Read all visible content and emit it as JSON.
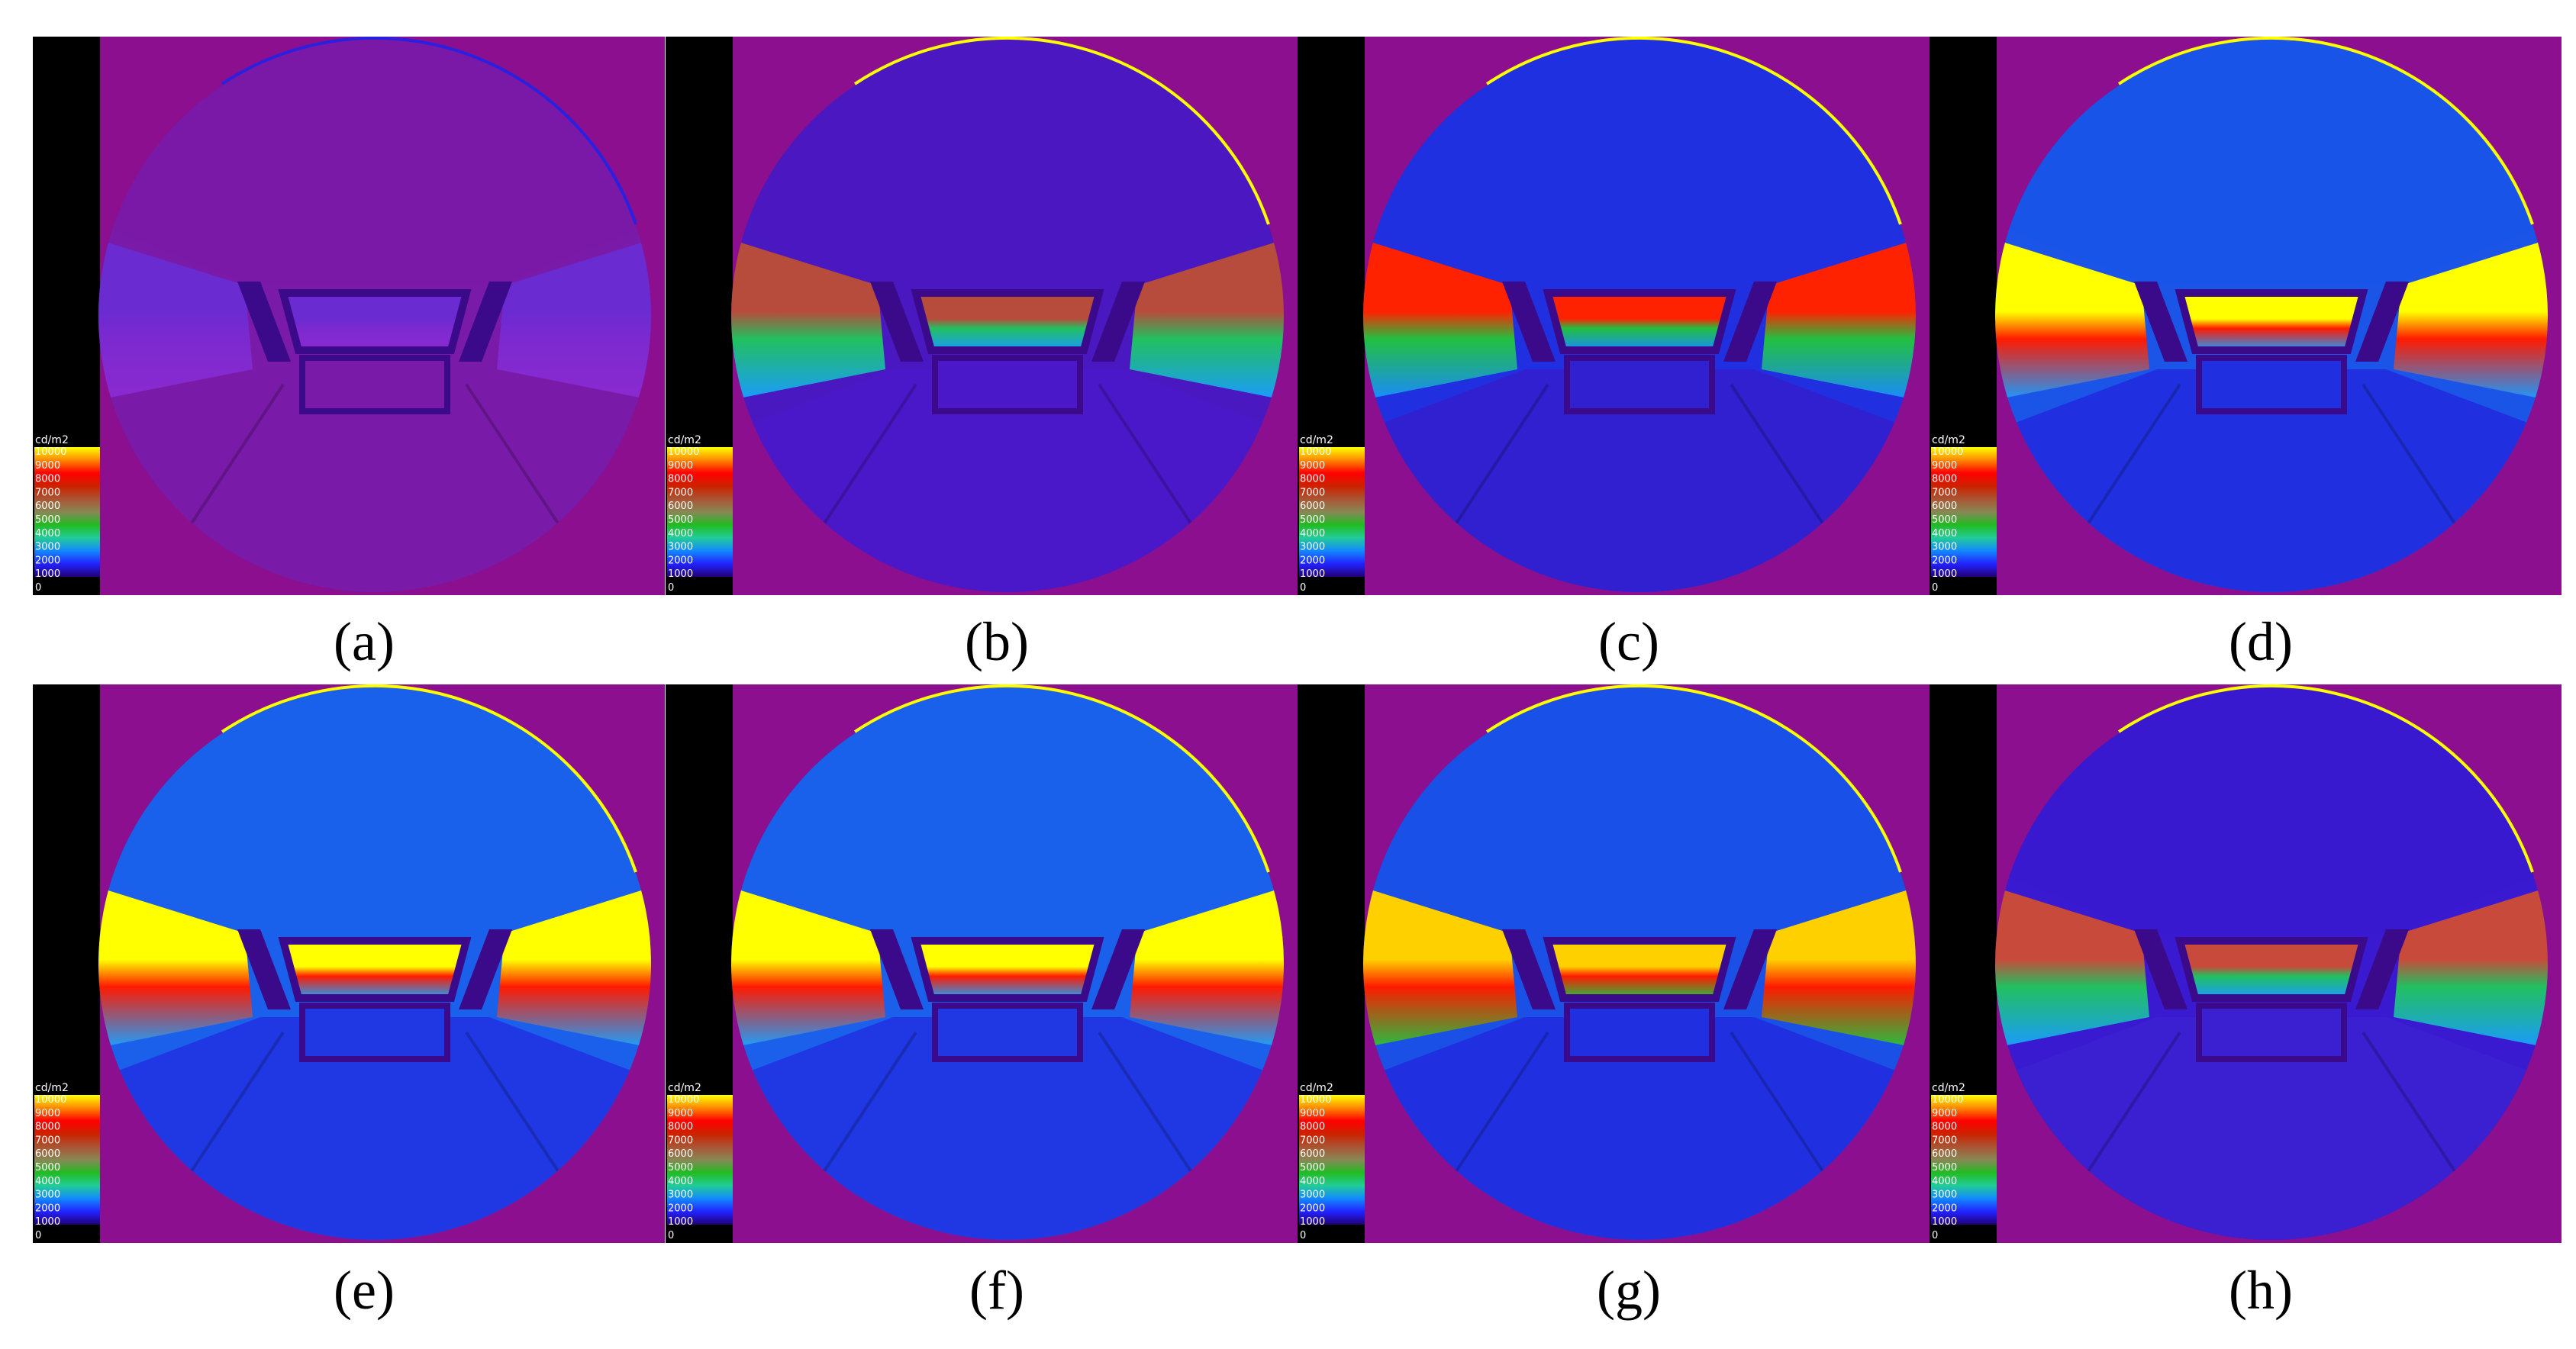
{
  "figure": {
    "legend": {
      "unit": "cd/m2",
      "ticks": [
        "10000",
        "9000",
        "8000",
        "7000",
        "6000",
        "5000",
        "4000",
        "3000",
        "2000",
        "1000",
        "0"
      ],
      "colors": [
        "#ffff00",
        "#ff8800",
        "#ff0000",
        "#cc2200",
        "#aa5533",
        "#888855",
        "#22bb22",
        "#22cc99",
        "#1188ff",
        "#2222ff",
        "#220077"
      ]
    },
    "panels": [
      {
        "id": "a",
        "caption": "(a)",
        "band_colors": [
          "#6a2bd0",
          "#7b2ad0",
          "#8a2ad0"
        ],
        "sky": "#7a1aa8",
        "floor": "#7a1aa8",
        "intensity": "minimal"
      },
      {
        "id": "b",
        "caption": "(b)",
        "band_colors": [
          "#b84c3c",
          "#22c060",
          "#1a9aff"
        ],
        "sky": "#4a18c0",
        "floor": "#4a18c8",
        "intensity": "low"
      },
      {
        "id": "c",
        "caption": "(c)",
        "band_colors": [
          "#ff2200",
          "#22c040",
          "#1a8aff"
        ],
        "sky": "#2030e0",
        "floor": "#3020d0",
        "intensity": "medium"
      },
      {
        "id": "d",
        "caption": "(d)",
        "band_colors": [
          "#ffff00",
          "#ff1a00",
          "#1a9aff"
        ],
        "sky": "#1a55e8",
        "floor": "#2030e0",
        "intensity": "high"
      },
      {
        "id": "e",
        "caption": "(e)",
        "band_colors": [
          "#ffff00",
          "#ff1a00",
          "#1aa0ff"
        ],
        "sky": "#1a60ea",
        "floor": "#2038e4",
        "intensity": "high"
      },
      {
        "id": "f",
        "caption": "(f)",
        "band_colors": [
          "#ffff00",
          "#ff1a00",
          "#1aa0ff"
        ],
        "sky": "#1a60ea",
        "floor": "#2038e4",
        "intensity": "high"
      },
      {
        "id": "g",
        "caption": "(g)",
        "band_colors": [
          "#ffd000",
          "#ff1a00",
          "#22c040"
        ],
        "sky": "#1a50e6",
        "floor": "#2030e0",
        "intensity": "medium-high"
      },
      {
        "id": "h",
        "caption": "(h)",
        "band_colors": [
          "#c84a3a",
          "#22c060",
          "#1a9aff"
        ],
        "sky": "#3a1ad0",
        "floor": "#3a20d0",
        "intensity": "low"
      }
    ],
    "background_color": "#8b0f8e"
  }
}
